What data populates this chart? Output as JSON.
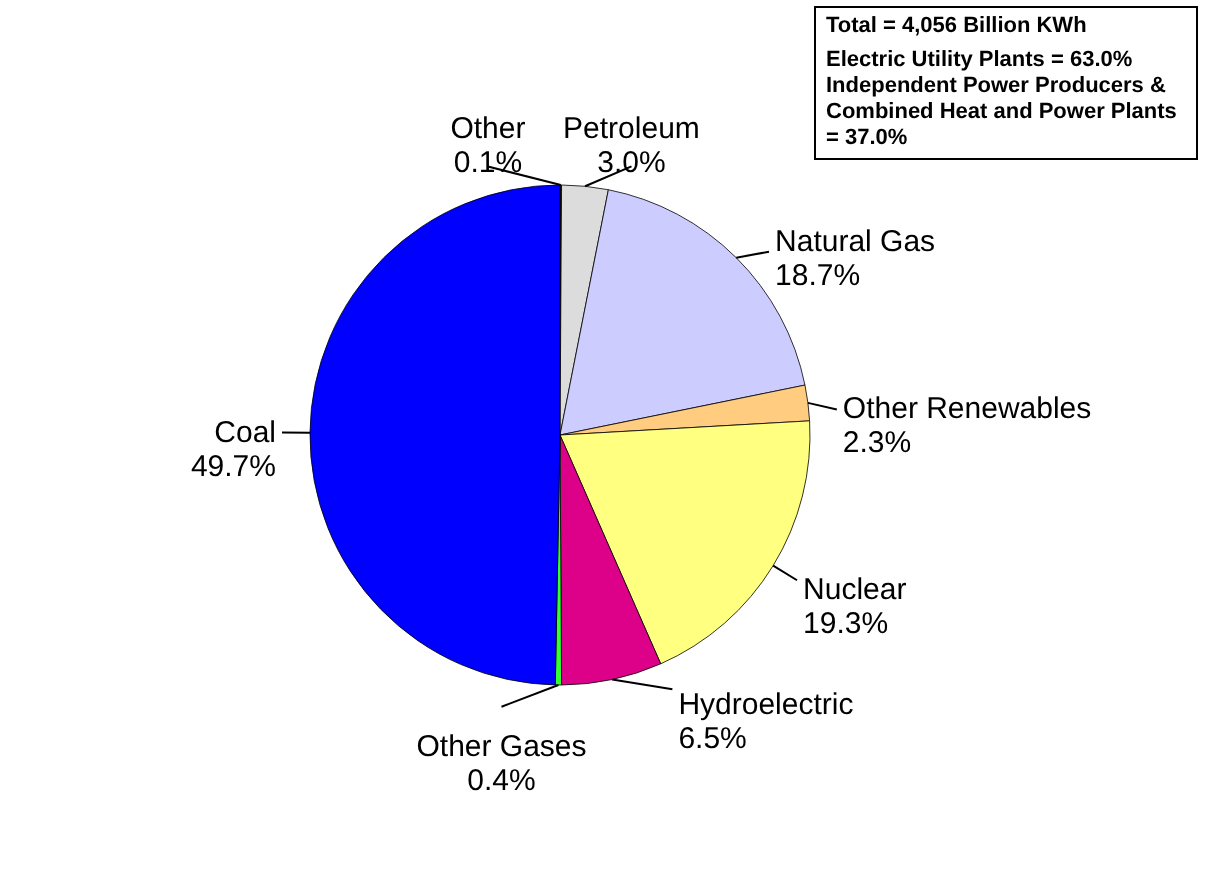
{
  "chart_data": {
    "type": "pie",
    "categories": [
      "Other",
      "Petroleum",
      "Natural Gas",
      "Other Renewables",
      "Nuclear",
      "Hydroelectric",
      "Other Gases",
      "Coal"
    ],
    "values": [
      0.1,
      3.0,
      18.7,
      2.3,
      19.3,
      6.5,
      0.4,
      49.7
    ],
    "value_labels": [
      "0.1%",
      "3.0%",
      "18.7%",
      "2.3%",
      "19.3%",
      "6.5%",
      "0.4%",
      "49.7%"
    ],
    "colors": [
      "#000000",
      "#dcdcdc",
      "#ccccff",
      "#ffcc80",
      "#ffff80",
      "#dd0088",
      "#33ff33",
      "#0000ff"
    ],
    "annotations": [
      "Total = 4,056 Billion KWh",
      "Electric Utility Plants = 63.0%",
      "Independent Power Producers & Combined Heat and Power Plants = 37.0%"
    ]
  }
}
